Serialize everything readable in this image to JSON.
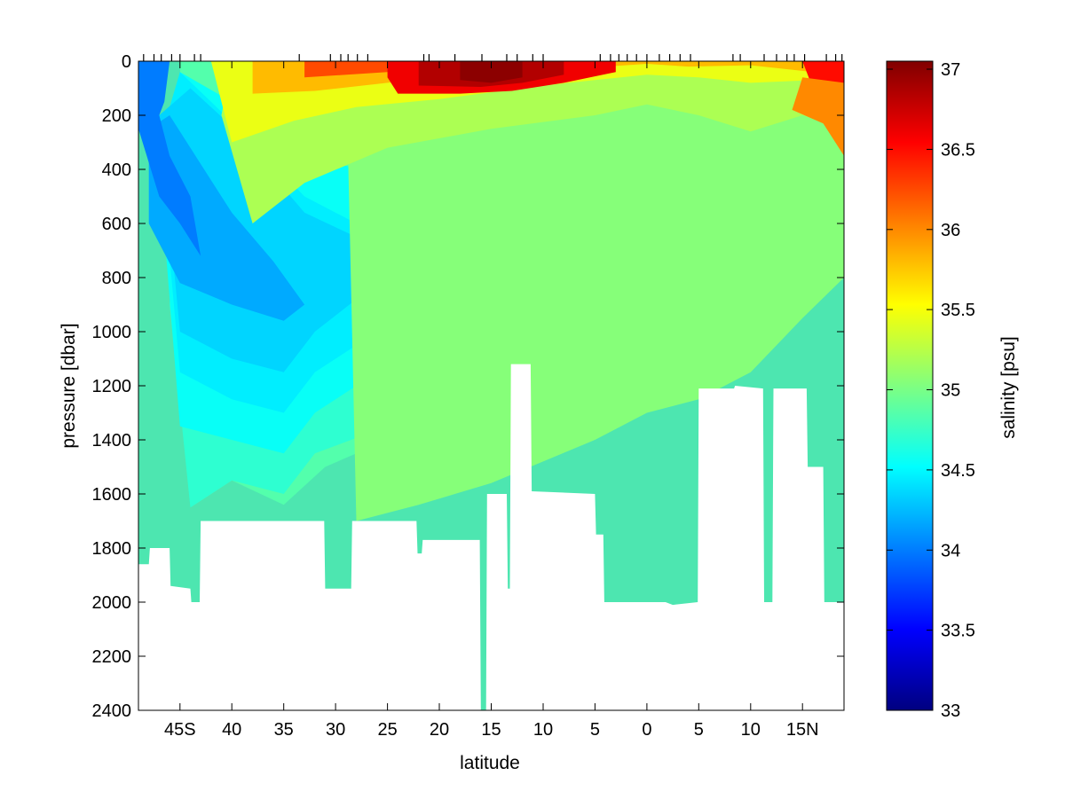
{
  "chart_data": {
    "type": "heatmap",
    "xlabel": "latitude",
    "ylabel": "pressure [dbar]",
    "colorbar_label": "salinity [psu]",
    "xlim": [
      -49,
      19
    ],
    "ylim": [
      2400,
      0
    ],
    "y_reversed": true,
    "x_ticks": [
      {
        "value": -45,
        "label": "45S"
      },
      {
        "value": -40,
        "label": "40"
      },
      {
        "value": -35,
        "label": "35"
      },
      {
        "value": -30,
        "label": "30"
      },
      {
        "value": -25,
        "label": "25"
      },
      {
        "value": -20,
        "label": "20"
      },
      {
        "value": -15,
        "label": "15"
      },
      {
        "value": -10,
        "label": "10"
      },
      {
        "value": -5,
        "label": "5"
      },
      {
        "value": 0,
        "label": "0"
      },
      {
        "value": 5,
        "label": "5"
      },
      {
        "value": 10,
        "label": "10"
      },
      {
        "value": 15,
        "label": "15N"
      }
    ],
    "y_ticks": [
      0,
      200,
      400,
      600,
      800,
      1000,
      1200,
      1400,
      1600,
      1800,
      2000,
      2200,
      2400
    ],
    "colorbar": {
      "colormap": "jet",
      "clim": [
        33,
        37.05
      ],
      "ticks": [
        33,
        33.5,
        34,
        34.5,
        35,
        35.5,
        36,
        36.5,
        37
      ]
    },
    "station_latitudes": [
      -48.5,
      -47.5,
      -46.8,
      -45.8,
      -45,
      -43.6,
      -43,
      -33.5,
      -30.5,
      -29.5,
      -28.8,
      -27.9,
      -26.9,
      -21.5,
      -21,
      -18.5,
      -15.9,
      -13.5,
      -12.5,
      -11,
      -10,
      -4.5,
      -3.5,
      -2.7,
      -1.9,
      -1,
      0,
      1.2,
      2.2,
      3.2,
      4.2,
      8.3,
      9,
      11.3,
      12.5,
      13.5,
      14.2,
      15.2,
      17.3,
      18.2,
      18.8
    ],
    "bottom_profile": [
      {
        "lat": -49,
        "pressure": 1860
      },
      {
        "lat": -48,
        "pressure": 1860
      },
      {
        "lat": -47.9,
        "pressure": 1800
      },
      {
        "lat": -46,
        "pressure": 1800
      },
      {
        "lat": -45.9,
        "pressure": 1940
      },
      {
        "lat": -44,
        "pressure": 1950
      },
      {
        "lat": -43.9,
        "pressure": 2000
      },
      {
        "lat": -43.1,
        "pressure": 2000
      },
      {
        "lat": -43,
        "pressure": 1700
      },
      {
        "lat": -33.4,
        "pressure": 1700
      },
      {
        "lat": -33.3,
        "pressure": 1700
      },
      {
        "lat": -31.1,
        "pressure": 1700
      },
      {
        "lat": -31,
        "pressure": 1950
      },
      {
        "lat": -28.5,
        "pressure": 1950
      },
      {
        "lat": -28.4,
        "pressure": 1700
      },
      {
        "lat": -22.2,
        "pressure": 1700
      },
      {
        "lat": -22.1,
        "pressure": 1820
      },
      {
        "lat": -21.7,
        "pressure": 1820
      },
      {
        "lat": -21.6,
        "pressure": 1770
      },
      {
        "lat": -16.1,
        "pressure": 1770
      },
      {
        "lat": -16.0,
        "pressure": 2400
      },
      {
        "lat": -15.5,
        "pressure": 2400
      },
      {
        "lat": -15.4,
        "pressure": 1600
      },
      {
        "lat": -13.5,
        "pressure": 1600
      },
      {
        "lat": -13.4,
        "pressure": 1950
      },
      {
        "lat": -13.2,
        "pressure": 1950
      },
      {
        "lat": -13.1,
        "pressure": 1120
      },
      {
        "lat": -11.2,
        "pressure": 1120
      },
      {
        "lat": -11.1,
        "pressure": 1590
      },
      {
        "lat": -5.0,
        "pressure": 1600
      },
      {
        "lat": -4.9,
        "pressure": 1750
      },
      {
        "lat": -4.2,
        "pressure": 1750
      },
      {
        "lat": -4.1,
        "pressure": 2000
      },
      {
        "lat": 1.8,
        "pressure": 2000
      },
      {
        "lat": 2.5,
        "pressure": 2010
      },
      {
        "lat": 4.9,
        "pressure": 2000
      },
      {
        "lat": 5.0,
        "pressure": 1210
      },
      {
        "lat": 8.4,
        "pressure": 1210
      },
      {
        "lat": 8.5,
        "pressure": 1200
      },
      {
        "lat": 11.2,
        "pressure": 1210
      },
      {
        "lat": 11.3,
        "pressure": 2000
      },
      {
        "lat": 12.1,
        "pressure": 2000
      },
      {
        "lat": 12.2,
        "pressure": 1210
      },
      {
        "lat": 15.4,
        "pressure": 1210
      },
      {
        "lat": 15.5,
        "pressure": 1500
      },
      {
        "lat": 17.0,
        "pressure": 1500
      },
      {
        "lat": 17.1,
        "pressure": 2000
      },
      {
        "lat": 19,
        "pressure": 2000
      }
    ]
  }
}
